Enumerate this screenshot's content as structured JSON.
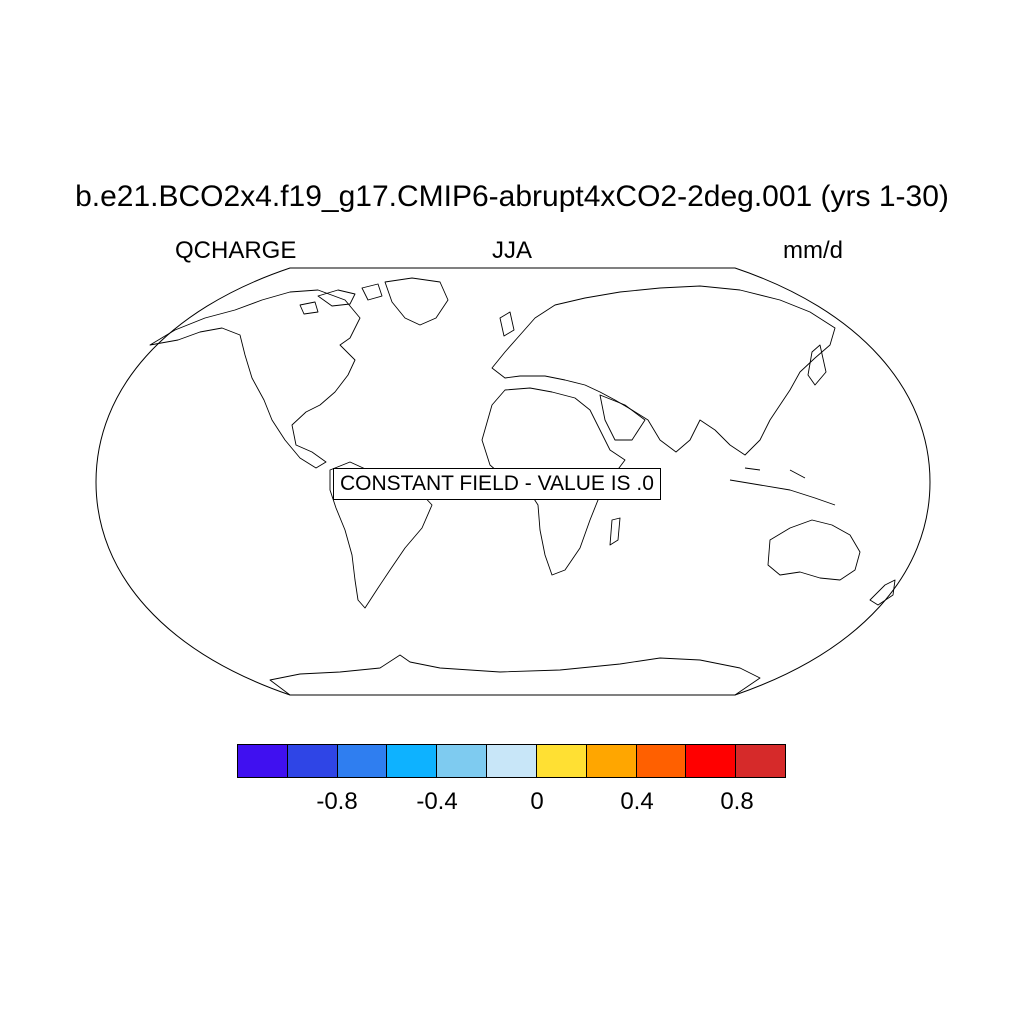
{
  "title": "b.e21.BCO2x4.f19_g17.CMIP6-abrupt4xCO2-2deg.001 (yrs 1-30)",
  "left_label": "QCHARGE",
  "center_label": "JJA",
  "right_label": "mm/d",
  "message": "CONSTANT FIELD - VALUE IS .0",
  "colorbar": {
    "colors": [
      "#4010f0",
      "#2f45e6",
      "#2f7ef0",
      "#0eb2ff",
      "#7ecbf0",
      "#c8e6f8",
      "#ffe033",
      "#ffa600",
      "#ff6000",
      "#ff0000",
      "#d62a2a"
    ],
    "ticks": [
      "-0.8",
      "-0.4",
      "0",
      "0.4",
      "0.8"
    ]
  }
}
